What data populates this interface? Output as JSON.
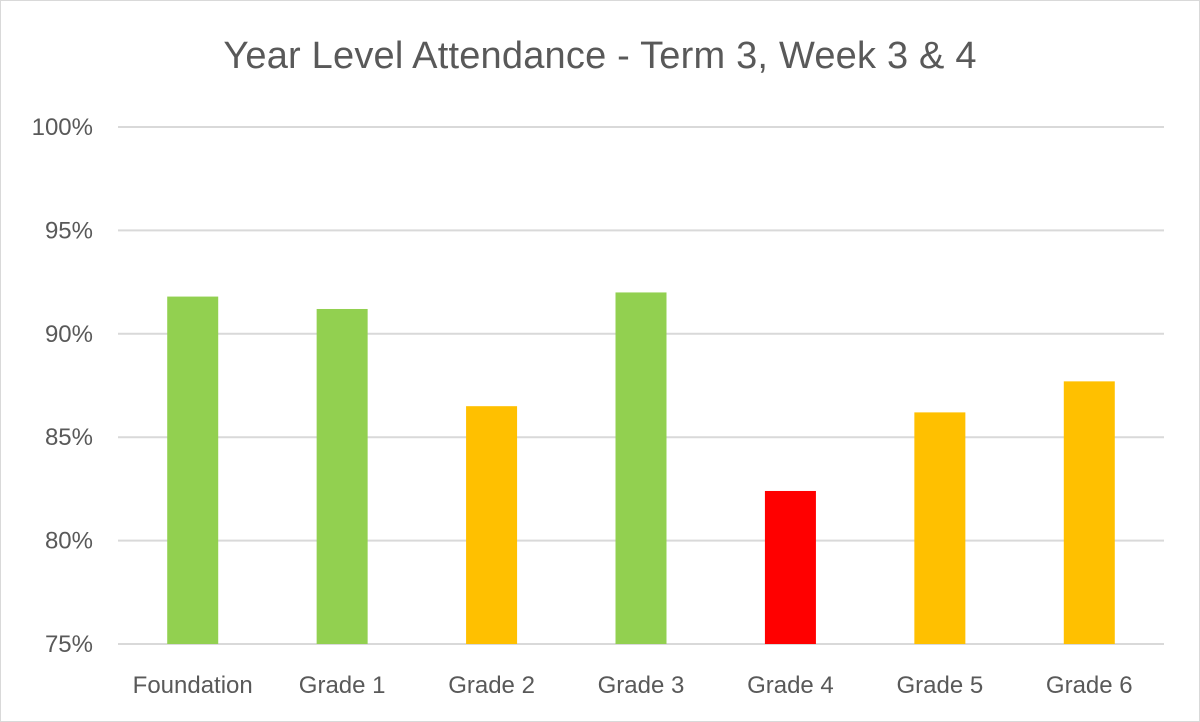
{
  "chart_data": {
    "type": "bar",
    "title": "Year Level Attendance - Term 3, Week 3 & 4",
    "xlabel": "",
    "ylabel": "",
    "categories": [
      "Foundation",
      "Grade 1",
      "Grade 2",
      "Grade 3",
      "Grade 4",
      "Grade 5",
      "Grade 6"
    ],
    "values": [
      91.8,
      91.2,
      86.5,
      92.0,
      82.4,
      86.2,
      87.7
    ],
    "bar_colors": [
      "#92d050",
      "#92d050",
      "#ffc000",
      "#92d050",
      "#ff0000",
      "#ffc000",
      "#ffc000"
    ],
    "ylim": [
      75,
      100
    ],
    "yticks": [
      75,
      80,
      85,
      90,
      95,
      100
    ],
    "ytick_labels": [
      "75%",
      "80%",
      "85%",
      "90%",
      "95%",
      "100%"
    ],
    "grid": true,
    "legend": "none",
    "gridline_color": "#d9d9d9"
  }
}
